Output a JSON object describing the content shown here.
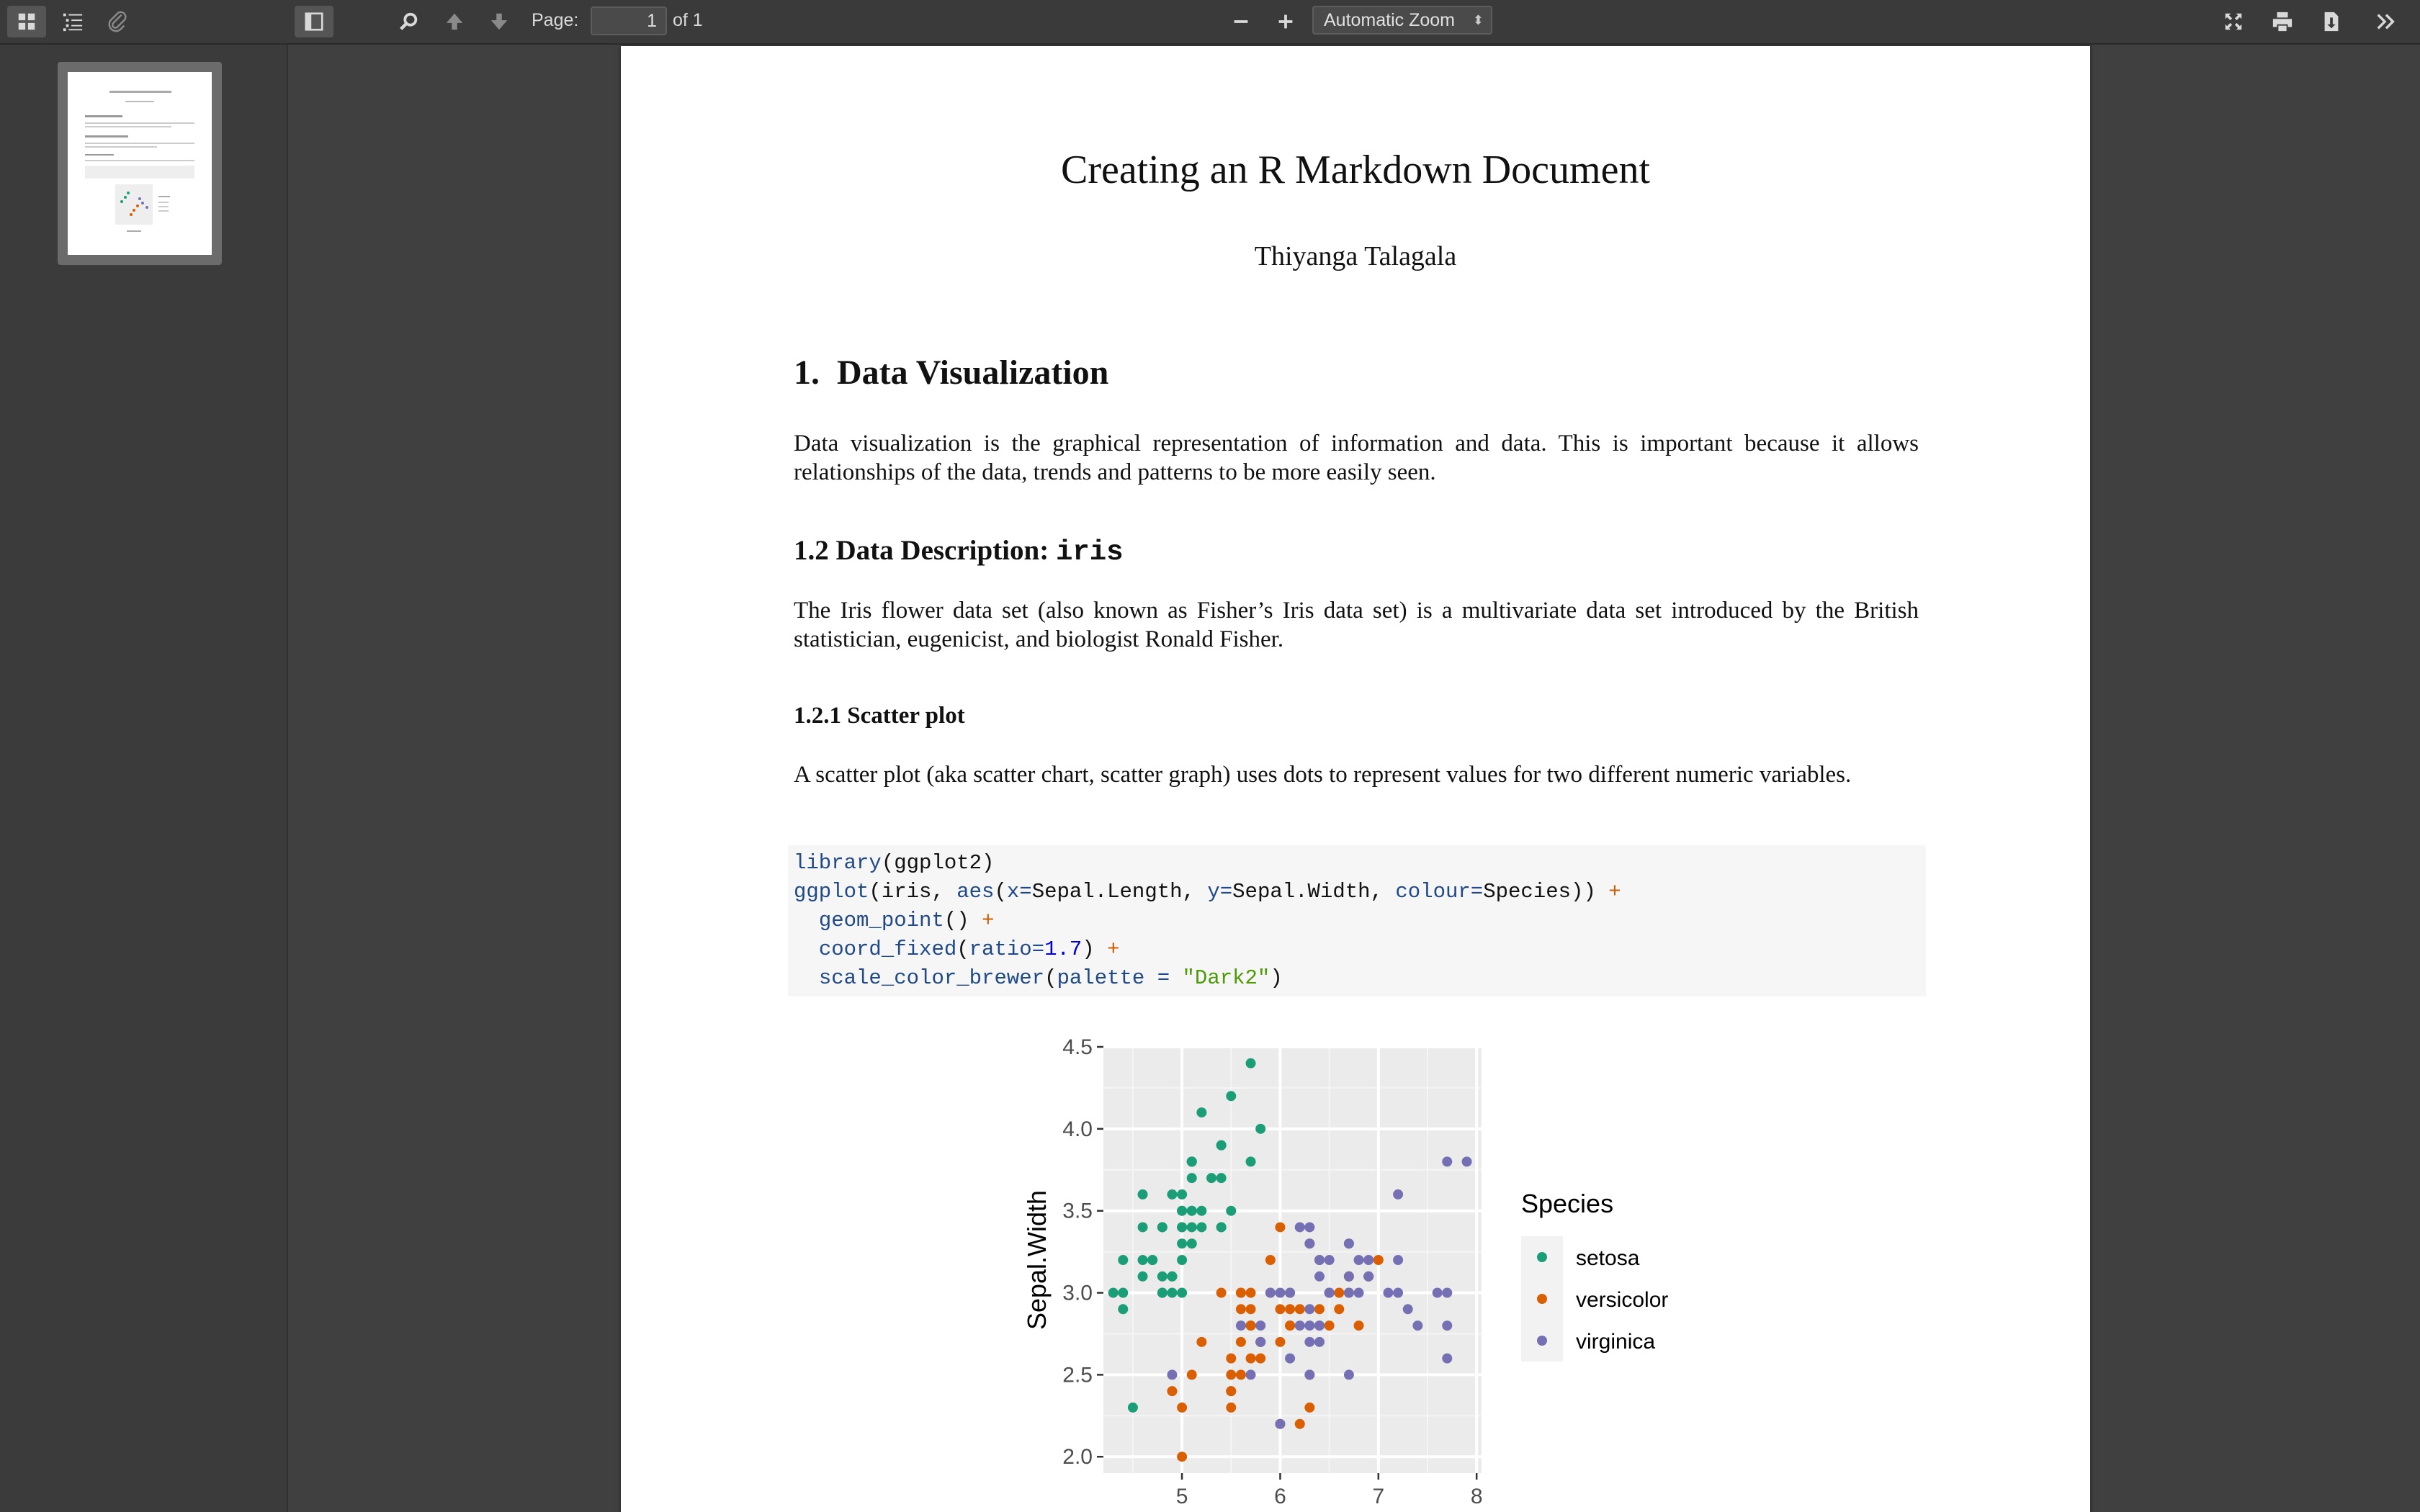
{
  "toolbar": {
    "page_label": "Page:",
    "page_value": "1",
    "page_total": "of 1",
    "zoom_value": "Automatic Zoom",
    "icons": [
      "thumbnails-icon",
      "outline-icon",
      "attachments-icon",
      "sidebar-toggle-icon",
      "search-icon",
      "previous-page-icon",
      "next-page-icon",
      "zoom-out-icon",
      "zoom-in-icon",
      "presentation-mode-icon",
      "print-icon",
      "download-icon",
      "tools-icon"
    ]
  },
  "document": {
    "title": "Creating an R Markdown Document",
    "author": "Thiyanga Talagala",
    "section1": {
      "number": "1.",
      "title": "Data Visualization"
    },
    "para1": "Data visualization is the graphical representation of information and data. This is important because it allows relationships of the data, trends and patterns to be more easily seen.",
    "section12": {
      "prefix": "1.2 Data Description:",
      "code": "iris"
    },
    "para2": "The Iris flower data set (also known as Fisher’s Iris data set) is a multivariate data set introduced by the British statistician, eugenicist, and biologist Ronald Fisher.",
    "section121": "1.2.1 Scatter plot",
    "para3": "A scatter plot (aka scatter chart, scatter graph) uses dots to represent values for two different numeric variables.",
    "code": {
      "l1_fn": "library",
      "l1_rest": "(ggplot2)",
      "l2_fn": "ggplot",
      "l2_a": "(iris, ",
      "l2_aes": "aes",
      "l2_b": "(",
      "l2_x": "x=",
      "l2_c": "Sepal.Length, ",
      "l2_y": "y=",
      "l2_d": "Sepal.Width, ",
      "l2_col": "colour=",
      "l2_e": "Species)) ",
      "l2_plus": "+",
      "l3_fn": "geom_point",
      "l3_rest": "() ",
      "l3_plus": "+",
      "l4_fn": "coord_fixed",
      "l4_a": "(",
      "l4_arg": "ratio=",
      "l4_num": "1.7",
      "l4_b": ") ",
      "l4_plus": "+",
      "l5_fn": "scale_color_brewer",
      "l5_a": "(",
      "l5_arg": "palette = ",
      "l5_str": "\"Dark2\"",
      "l5_b": ")"
    }
  },
  "chart_data": {
    "type": "scatter",
    "ylabel": "Sepal.Width",
    "xlabel": "",
    "xlim": [
      4.2,
      8.05
    ],
    "ylim": [
      1.9,
      4.5
    ],
    "x_ticks": [
      "5",
      "6",
      "7",
      "8"
    ],
    "y_ticks": [
      "2.0",
      "2.5",
      "3.0",
      "3.5",
      "4.0",
      "4.5"
    ],
    "legend": {
      "title": "Species",
      "placement": "right"
    },
    "series": [
      {
        "name": "setosa",
        "color": "#1b9e77",
        "points": [
          [
            5.1,
            3.5
          ],
          [
            4.9,
            3.0
          ],
          [
            4.7,
            3.2
          ],
          [
            4.6,
            3.1
          ],
          [
            5.0,
            3.6
          ],
          [
            5.4,
            3.9
          ],
          [
            4.6,
            3.4
          ],
          [
            5.0,
            3.4
          ],
          [
            4.4,
            2.9
          ],
          [
            4.9,
            3.1
          ],
          [
            5.4,
            3.7
          ],
          [
            4.8,
            3.4
          ],
          [
            4.8,
            3.0
          ],
          [
            4.3,
            3.0
          ],
          [
            5.8,
            4.0
          ],
          [
            5.7,
            4.4
          ],
          [
            5.4,
            3.9
          ],
          [
            5.1,
            3.5
          ],
          [
            5.7,
            3.8
          ],
          [
            5.1,
            3.8
          ],
          [
            5.4,
            3.4
          ],
          [
            5.1,
            3.7
          ],
          [
            4.6,
            3.6
          ],
          [
            5.1,
            3.3
          ],
          [
            4.8,
            3.4
          ],
          [
            5.0,
            3.0
          ],
          [
            5.0,
            3.4
          ],
          [
            5.2,
            3.5
          ],
          [
            5.2,
            3.4
          ],
          [
            4.7,
            3.2
          ],
          [
            4.8,
            3.1
          ],
          [
            5.4,
            3.4
          ],
          [
            5.2,
            4.1
          ],
          [
            5.5,
            4.2
          ],
          [
            4.9,
            3.1
          ],
          [
            5.0,
            3.2
          ],
          [
            5.5,
            3.5
          ],
          [
            4.9,
            3.6
          ],
          [
            4.4,
            3.0
          ],
          [
            5.1,
            3.4
          ],
          [
            5.0,
            3.5
          ],
          [
            4.5,
            2.3
          ],
          [
            4.4,
            3.2
          ],
          [
            5.0,
            3.5
          ],
          [
            5.1,
            3.8
          ],
          [
            4.8,
            3.0
          ],
          [
            5.1,
            3.8
          ],
          [
            4.6,
            3.2
          ],
          [
            5.3,
            3.7
          ],
          [
            5.0,
            3.3
          ]
        ]
      },
      {
        "name": "versicolor",
        "color": "#d95f02",
        "points": [
          [
            7.0,
            3.2
          ],
          [
            6.4,
            3.2
          ],
          [
            6.9,
            3.1
          ],
          [
            5.5,
            2.3
          ],
          [
            6.5,
            2.8
          ],
          [
            5.7,
            2.8
          ],
          [
            6.3,
            3.3
          ],
          [
            4.9,
            2.4
          ],
          [
            6.6,
            2.9
          ],
          [
            5.2,
            2.7
          ],
          [
            5.0,
            2.0
          ],
          [
            5.9,
            3.0
          ],
          [
            6.0,
            2.2
          ],
          [
            6.1,
            2.9
          ],
          [
            5.6,
            2.9
          ],
          [
            6.7,
            3.1
          ],
          [
            5.6,
            3.0
          ],
          [
            5.8,
            2.7
          ],
          [
            6.2,
            2.2
          ],
          [
            5.6,
            2.5
          ],
          [
            5.9,
            3.2
          ],
          [
            6.1,
            2.8
          ],
          [
            6.3,
            2.5
          ],
          [
            6.1,
            2.8
          ],
          [
            6.4,
            2.9
          ],
          [
            6.6,
            3.0
          ],
          [
            6.8,
            2.8
          ],
          [
            6.7,
            3.0
          ],
          [
            6.0,
            2.9
          ],
          [
            5.7,
            2.6
          ],
          [
            5.5,
            2.4
          ],
          [
            5.5,
            2.4
          ],
          [
            5.8,
            2.7
          ],
          [
            6.0,
            2.7
          ],
          [
            5.4,
            3.0
          ],
          [
            6.0,
            3.4
          ],
          [
            6.7,
            3.1
          ],
          [
            6.3,
            2.3
          ],
          [
            5.6,
            3.0
          ],
          [
            5.5,
            2.5
          ],
          [
            5.5,
            2.6
          ],
          [
            6.1,
            3.0
          ],
          [
            5.8,
            2.6
          ],
          [
            5.0,
            2.3
          ],
          [
            5.6,
            2.7
          ],
          [
            5.7,
            3.0
          ],
          [
            5.7,
            2.9
          ],
          [
            6.2,
            2.9
          ],
          [
            5.1,
            2.5
          ],
          [
            5.7,
            2.8
          ]
        ]
      },
      {
        "name": "virginica",
        "color": "#7570b3",
        "points": [
          [
            6.3,
            3.3
          ],
          [
            5.8,
            2.7
          ],
          [
            7.1,
            3.0
          ],
          [
            6.3,
            2.9
          ],
          [
            6.5,
            3.0
          ],
          [
            7.6,
            3.0
          ],
          [
            4.9,
            2.5
          ],
          [
            7.3,
            2.9
          ],
          [
            6.7,
            2.5
          ],
          [
            7.2,
            3.6
          ],
          [
            6.5,
            3.2
          ],
          [
            6.4,
            2.7
          ],
          [
            6.8,
            3.0
          ],
          [
            5.7,
            2.5
          ],
          [
            5.8,
            2.8
          ],
          [
            6.4,
            3.2
          ],
          [
            6.5,
            3.0
          ],
          [
            7.7,
            3.8
          ],
          [
            7.7,
            2.6
          ],
          [
            6.0,
            2.2
          ],
          [
            6.9,
            3.2
          ],
          [
            5.6,
            2.8
          ],
          [
            7.7,
            2.8
          ],
          [
            6.3,
            2.7
          ],
          [
            6.7,
            3.3
          ],
          [
            7.2,
            3.2
          ],
          [
            6.2,
            2.8
          ],
          [
            6.1,
            3.0
          ],
          [
            6.4,
            2.8
          ],
          [
            7.2,
            3.0
          ],
          [
            7.4,
            2.8
          ],
          [
            7.9,
            3.8
          ],
          [
            6.4,
            2.8
          ],
          [
            6.3,
            2.8
          ],
          [
            6.1,
            2.6
          ],
          [
            7.7,
            3.0
          ],
          [
            6.3,
            3.4
          ],
          [
            6.4,
            3.1
          ],
          [
            6.0,
            3.0
          ],
          [
            6.9,
            3.1
          ],
          [
            6.7,
            3.1
          ],
          [
            6.9,
            3.1
          ],
          [
            5.8,
            2.7
          ],
          [
            6.8,
            3.2
          ],
          [
            6.7,
            3.3
          ],
          [
            6.7,
            3.0
          ],
          [
            6.3,
            2.5
          ],
          [
            6.5,
            3.0
          ],
          [
            6.2,
            3.4
          ],
          [
            5.9,
            3.0
          ]
        ]
      }
    ]
  }
}
